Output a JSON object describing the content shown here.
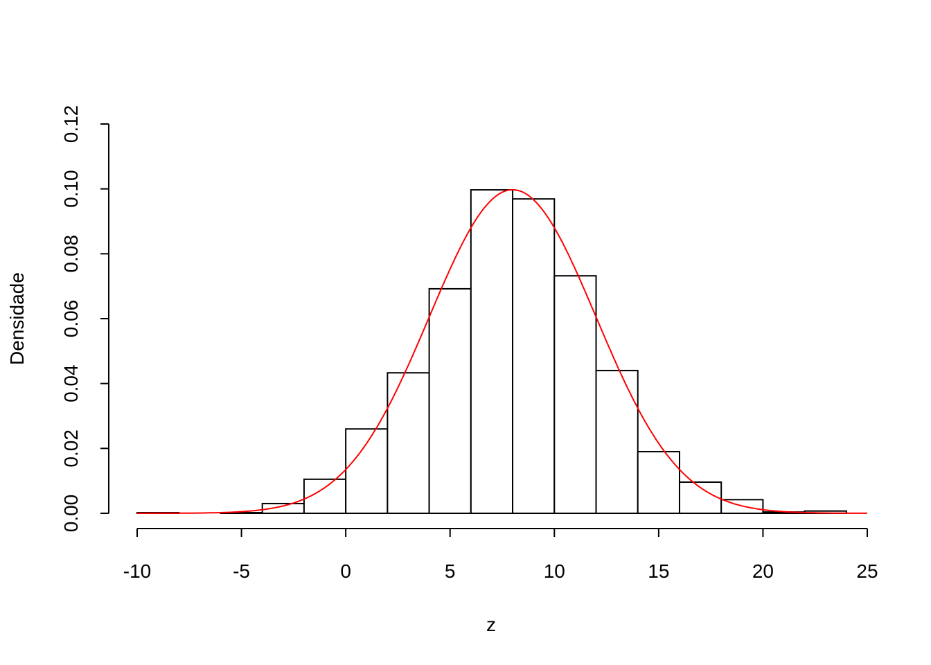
{
  "chart_data": {
    "type": "bar",
    "subtype": "histogram with density curve",
    "title": "",
    "xlabel": "z",
    "ylabel": "Densidade",
    "xlim": [
      -10,
      25
    ],
    "ylim": [
      0,
      0.12
    ],
    "xticks": [
      "-10",
      "-5",
      "0",
      "5",
      "10",
      "15",
      "20",
      "25"
    ],
    "xtick_values": [
      -10,
      -5,
      0,
      5,
      10,
      15,
      20,
      25
    ],
    "yticks": [
      "0.00",
      "0.02",
      "0.04",
      "0.06",
      "0.08",
      "0.10",
      "0.12"
    ],
    "ytick_values": [
      0,
      0.02,
      0.04,
      0.06,
      0.08,
      0.1,
      0.12
    ],
    "grid": false,
    "bins": [
      {
        "from": -10,
        "to": -8,
        "density": 0.0002
      },
      {
        "from": -8,
        "to": -6,
        "density": 0
      },
      {
        "from": -6,
        "to": -4,
        "density": 0.0002
      },
      {
        "from": -4,
        "to": -2,
        "density": 0.003
      },
      {
        "from": -2,
        "to": 0,
        "density": 0.0105
      },
      {
        "from": 0,
        "to": 2,
        "density": 0.026
      },
      {
        "from": 2,
        "to": 4,
        "density": 0.0433
      },
      {
        "from": 4,
        "to": 6,
        "density": 0.0692
      },
      {
        "from": 6,
        "to": 8,
        "density": 0.0997
      },
      {
        "from": 8,
        "to": 10,
        "density": 0.0969
      },
      {
        "from": 10,
        "to": 12,
        "density": 0.0732
      },
      {
        "from": 12,
        "to": 14,
        "density": 0.044
      },
      {
        "from": 14,
        "to": 16,
        "density": 0.019
      },
      {
        "from": 16,
        "to": 18,
        "density": 0.0096
      },
      {
        "from": 18,
        "to": 20,
        "density": 0.0042
      },
      {
        "from": 20,
        "to": 22,
        "density": 0.0004
      },
      {
        "from": 22,
        "to": 24,
        "density": 0.0007
      }
    ],
    "curve": {
      "type": "normal density",
      "mean": 8,
      "sd": 4,
      "color": "#ff0000",
      "x_range": [
        -10,
        25
      ]
    },
    "bar_fill": "#ffffff",
    "bar_stroke": "#000000"
  }
}
